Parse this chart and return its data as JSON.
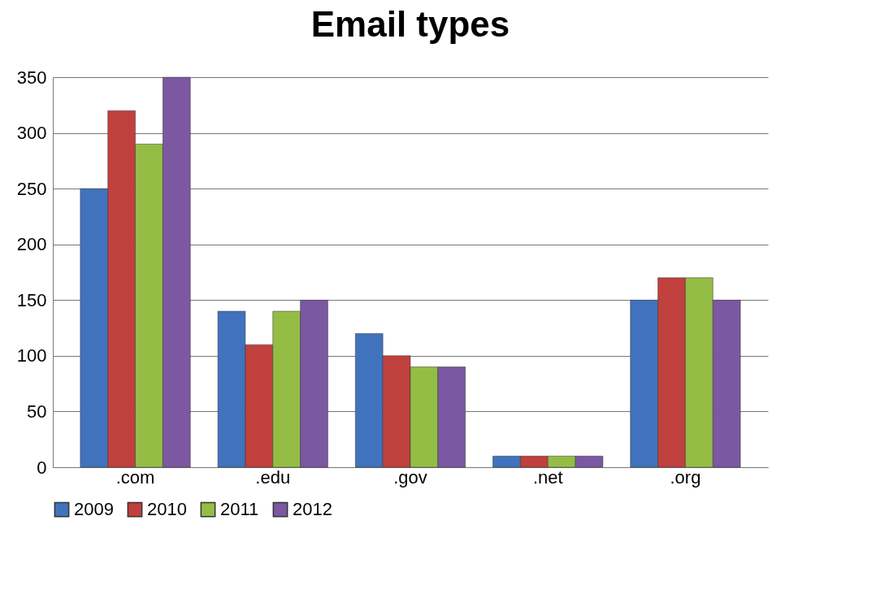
{
  "chart_data": {
    "type": "bar",
    "title": "Email types",
    "categories": [
      ".com",
      ".edu",
      ".gov",
      ".net",
      ".org"
    ],
    "series": [
      {
        "name": "2009",
        "color": "#4172bd",
        "values": [
          250,
          140,
          120,
          10,
          150
        ]
      },
      {
        "name": "2010",
        "color": "#c0403d",
        "values": [
          320,
          110,
          100,
          10,
          170
        ]
      },
      {
        "name": "2011",
        "color": "#94bd45",
        "values": [
          290,
          140,
          90,
          10,
          170
        ]
      },
      {
        "name": "2012",
        "color": "#7b58a1",
        "values": [
          350,
          150,
          90,
          10,
          150
        ]
      }
    ],
    "ylim": [
      0,
      350
    ],
    "yticks": [
      0,
      50,
      100,
      150,
      200,
      250,
      300,
      350
    ],
    "grid": "y",
    "legend": "bottom"
  }
}
